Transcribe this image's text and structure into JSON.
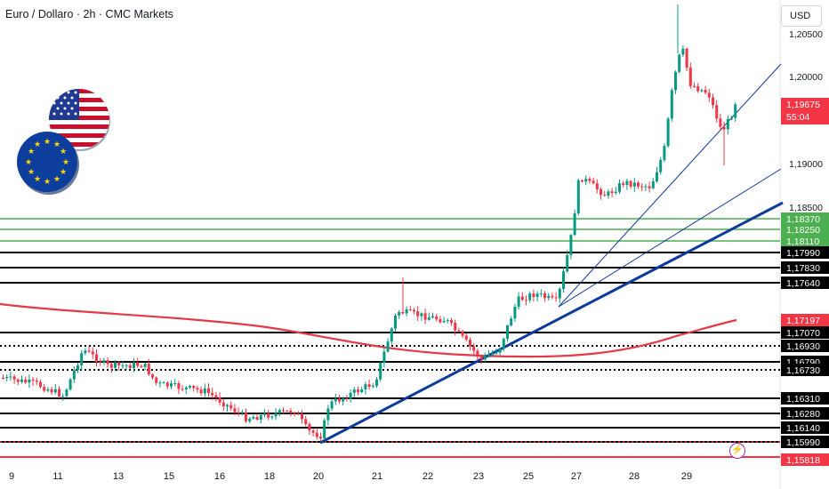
{
  "header": {
    "title": "Euro / Dollaro · 2h · CMC Markets",
    "currency_button": "USD"
  },
  "chart_data": {
    "type": "candlestick",
    "symbol": "Euro / Dollaro",
    "interval": "2h",
    "source": "CMC Markets",
    "currency": "USD",
    "y_axis_labels": [
      "1,20500",
      "1,20000",
      "1,19000",
      "1,18500"
    ],
    "x_axis_labels": [
      "9",
      "11",
      "13",
      "15",
      "16",
      "18",
      "20",
      "21",
      "22",
      "23",
      "25",
      "27",
      "28",
      "29"
    ],
    "last_price": {
      "value": "1,19675",
      "countdown": "55:04",
      "color": "#f23645"
    },
    "sma_value": {
      "value": "1,17197",
      "color": "#f23645"
    },
    "green_levels": [
      "1,18370",
      "1,18250",
      "1,18110"
    ],
    "black_levels": [
      "1,17990",
      "1,17830",
      "1,17640",
      "1,17070",
      "1,16790",
      "1,16310",
      "1,16280",
      "1,16140",
      "1,15990"
    ],
    "dotted_levels": [
      "1,16930",
      "1,16730"
    ],
    "red_level": "1,15818",
    "colors": {
      "up": "#089981",
      "down": "#f23645",
      "trendline": "#0d3a9c",
      "green_level": "#4caf50",
      "level": "#000000",
      "sma": "#e53945"
    }
  }
}
